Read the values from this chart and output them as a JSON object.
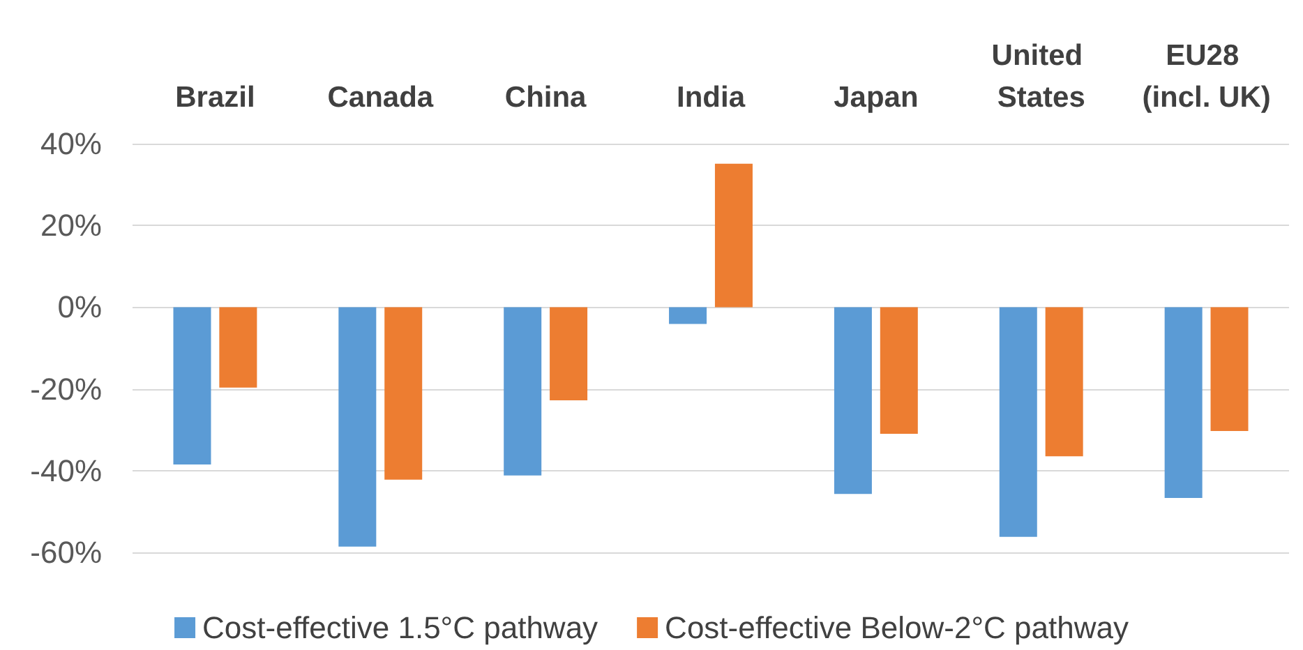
{
  "chart_data": {
    "type": "bar",
    "categories": [
      "Brazil",
      "Canada",
      "China",
      "India",
      "Japan",
      "United States",
      "EU28 (incl. UK)"
    ],
    "series": [
      {
        "name": "Cost-effective 1.5°C pathway",
        "color": "#5b9bd5",
        "values": [
          -38.5,
          -58.6,
          -41.2,
          -4.1,
          -45.7,
          -56.2,
          -46.7
        ]
      },
      {
        "name": "Cost-effective Below-2°C pathway",
        "color": "#ed7d31",
        "values": [
          -19.7,
          -42.2,
          -22.8,
          35.1,
          -31,
          -36.5,
          -30.3
        ]
      }
    ],
    "ylim": [
      -60,
      40
    ],
    "yticks": [
      {
        "value": -60,
        "label": "-60%"
      },
      {
        "value": -40,
        "label": "-40%"
      },
      {
        "value": -20,
        "label": "-20%"
      },
      {
        "value": 0,
        "label": "0%"
      },
      {
        "value": 20,
        "label": "20%"
      },
      {
        "value": 40,
        "label": "40%"
      }
    ],
    "grid": "y",
    "legend": "bottom"
  }
}
